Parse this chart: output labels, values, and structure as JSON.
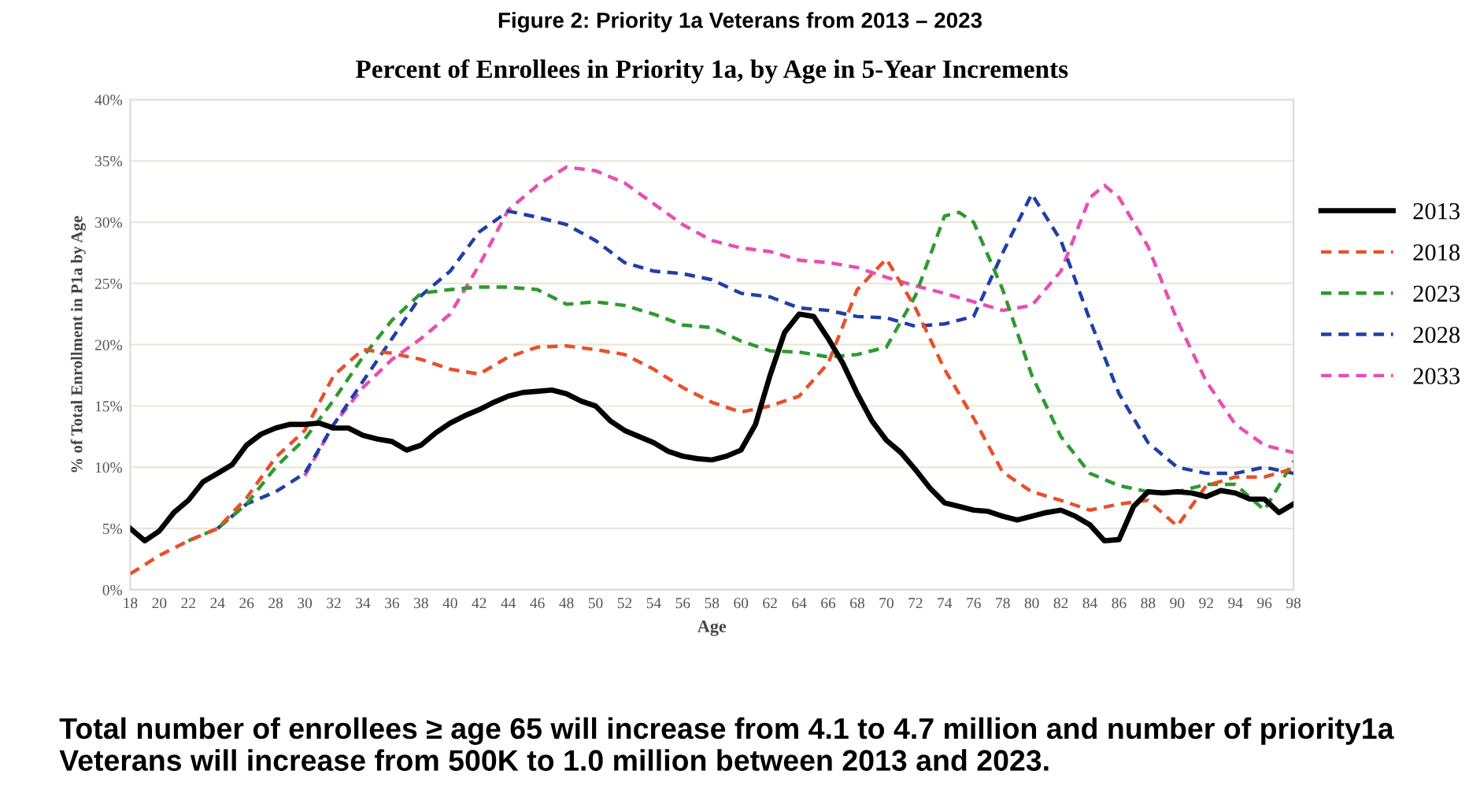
{
  "chart_data": {
    "type": "line",
    "title": "Percent of Enrollees in Priority 1a, by Age in 5-Year Increments",
    "xlabel": "Age",
    "ylabel": "% of Total Enrollment in P1a by Age",
    "annotations": [
      "Figure 2: Priority 1a Veterans from 2013 – 2023",
      "Total number of enrollees ≥ age 65 will increase from 4.1 to 4.7 million and number of priority1a Veterans will increase from 500K to 1.0 million between 2013 and 2023."
    ],
    "series": [
      {
        "name": "2013",
        "color": "#000000",
        "line_style": "solid",
        "x": [
          18,
          19,
          20,
          21,
          22,
          23,
          24,
          25,
          26,
          27,
          28,
          29,
          30,
          31,
          32,
          33,
          34,
          35,
          36,
          37,
          38,
          39,
          40,
          41,
          42,
          43,
          44,
          45,
          46,
          47,
          48,
          49,
          50,
          51,
          52,
          53,
          54,
          55,
          56,
          57,
          58,
          59,
          60,
          61,
          62,
          63,
          64,
          65,
          66,
          67,
          68,
          69,
          70,
          71,
          72,
          73,
          74,
          75,
          76,
          77,
          78,
          79,
          80,
          81,
          82,
          83,
          84,
          85,
          86,
          87,
          88,
          89,
          90,
          91,
          92,
          93,
          94,
          95,
          96,
          97,
          98
        ],
        "values": [
          5.0,
          4.0,
          4.8,
          6.3,
          7.3,
          8.8,
          9.5,
          10.2,
          11.8,
          12.7,
          13.2,
          13.5,
          13.5,
          13.6,
          13.2,
          13.2,
          12.6,
          12.3,
          12.1,
          11.4,
          11.8,
          12.8,
          13.6,
          14.2,
          14.7,
          15.3,
          15.8,
          16.1,
          16.2,
          16.3,
          16.0,
          15.4,
          15.0,
          13.8,
          13.0,
          12.5,
          12.0,
          11.3,
          10.9,
          10.7,
          10.6,
          10.9,
          11.4,
          13.5,
          17.5,
          21.0,
          22.5,
          22.3,
          20.5,
          18.5,
          16.0,
          13.8,
          12.2,
          11.2,
          9.8,
          8.3,
          7.1,
          6.8,
          6.5,
          6.4,
          6.0,
          5.7,
          6.0,
          6.3,
          6.5,
          6.0,
          5.3,
          4.0,
          4.1,
          6.8,
          8.0,
          7.9,
          8.0,
          7.9,
          7.6,
          8.1,
          7.9,
          7.4,
          7.4,
          6.3,
          7.0
        ]
      },
      {
        "name": "2018",
        "color": "#e8502a",
        "line_style": "dashed",
        "x": [
          18,
          20,
          22,
          24,
          26,
          28,
          30,
          32,
          34,
          36,
          38,
          40,
          42,
          44,
          46,
          48,
          50,
          52,
          54,
          56,
          58,
          60,
          62,
          64,
          66,
          68,
          70,
          72,
          74,
          76,
          78,
          80,
          82,
          84,
          86,
          88,
          90,
          92,
          94,
          96,
          98
        ],
        "values": [
          1.3,
          2.8,
          4.0,
          5.0,
          7.5,
          10.8,
          13.0,
          17.5,
          19.6,
          19.3,
          18.8,
          18.0,
          17.6,
          19.0,
          19.8,
          19.9,
          19.6,
          19.2,
          18.0,
          16.5,
          15.3,
          14.5,
          15.0,
          15.8,
          18.5,
          24.5,
          27.0,
          23.0,
          18.0,
          14.0,
          9.6,
          8.0,
          7.3,
          6.5,
          7.0,
          7.3,
          5.2,
          8.5,
          9.2,
          9.2,
          9.9
        ]
      },
      {
        "name": "2023",
        "color": "#2e9a2e",
        "line_style": "dashed",
        "x": [
          22,
          24,
          26,
          28,
          30,
          32,
          34,
          36,
          38,
          40,
          42,
          44,
          46,
          48,
          50,
          52,
          54,
          56,
          58,
          60,
          62,
          64,
          66,
          68,
          70,
          72,
          74,
          75,
          76,
          78,
          80,
          82,
          84,
          86,
          88,
          90,
          92,
          94,
          96,
          98
        ],
        "values": [
          4.0,
          5.0,
          7.0,
          10.0,
          12.3,
          15.5,
          19.0,
          22.0,
          24.2,
          24.5,
          24.7,
          24.7,
          24.5,
          23.3,
          23.5,
          23.2,
          22.5,
          21.6,
          21.4,
          20.3,
          19.5,
          19.4,
          19.0,
          19.2,
          19.8,
          24.0,
          30.5,
          30.8,
          30.0,
          24.5,
          17.5,
          12.5,
          9.5,
          8.5,
          8.0,
          8.0,
          8.6,
          8.6,
          6.5,
          10.5
        ]
      },
      {
        "name": "2028",
        "color": "#1f3fa8",
        "line_style": "dashed",
        "x": [
          24,
          26,
          28,
          30,
          32,
          34,
          36,
          38,
          40,
          42,
          44,
          46,
          48,
          50,
          52,
          54,
          56,
          58,
          60,
          62,
          64,
          66,
          68,
          70,
          72,
          74,
          76,
          78,
          80,
          82,
          84,
          86,
          88,
          90,
          92,
          94,
          96,
          98
        ],
        "values": [
          5.0,
          7.0,
          8.0,
          9.5,
          13.5,
          17.0,
          20.5,
          24.0,
          26.0,
          29.2,
          30.9,
          30.4,
          29.8,
          28.5,
          26.7,
          26.0,
          25.8,
          25.3,
          24.2,
          23.9,
          23.0,
          22.8,
          22.3,
          22.2,
          21.5,
          21.7,
          22.3,
          27.5,
          32.3,
          28.5,
          22.0,
          16.0,
          12.0,
          10.0,
          9.5,
          9.5,
          10.0,
          9.5
        ]
      },
      {
        "name": "2033",
        "color": "#e64fb4",
        "line_style": "dashed",
        "x": [
          30,
          32,
          34,
          36,
          38,
          40,
          42,
          44,
          46,
          48,
          50,
          52,
          54,
          56,
          58,
          60,
          62,
          64,
          66,
          68,
          70,
          72,
          74,
          76,
          78,
          80,
          82,
          84,
          85,
          86,
          88,
          90,
          92,
          94,
          96,
          98
        ],
        "values": [
          9.3,
          13.5,
          16.5,
          18.8,
          20.5,
          22.5,
          26.5,
          31.0,
          33.0,
          34.5,
          34.2,
          33.2,
          31.5,
          29.8,
          28.5,
          27.9,
          27.6,
          26.9,
          26.7,
          26.3,
          25.5,
          24.8,
          24.2,
          23.5,
          22.8,
          23.2,
          26.0,
          32.0,
          33.0,
          32.0,
          28.0,
          22.0,
          17.0,
          13.5,
          11.8,
          11.2
        ]
      }
    ],
    "xlim": [
      18,
      98
    ],
    "xticks": [
      18,
      20,
      22,
      24,
      26,
      28,
      30,
      32,
      34,
      36,
      38,
      40,
      42,
      44,
      46,
      48,
      50,
      52,
      54,
      56,
      58,
      60,
      62,
      64,
      66,
      68,
      70,
      72,
      74,
      76,
      78,
      80,
      82,
      84,
      86,
      88,
      90,
      92,
      94,
      96,
      98
    ],
    "ylim": [
      0,
      40
    ],
    "yticks": [
      {
        "value": 0,
        "label": "0%"
      },
      {
        "value": 5,
        "label": "5%"
      },
      {
        "value": 10,
        "label": "10%"
      },
      {
        "value": 15,
        "label": "15%"
      },
      {
        "value": 20,
        "label": "20%"
      },
      {
        "value": 25,
        "label": "25%"
      },
      {
        "value": 30,
        "label": "30%"
      },
      {
        "value": 35,
        "label": "35%"
      },
      {
        "value": 40,
        "label": "40%"
      }
    ],
    "grid": "y",
    "legend": "right",
    "marker": "none"
  }
}
